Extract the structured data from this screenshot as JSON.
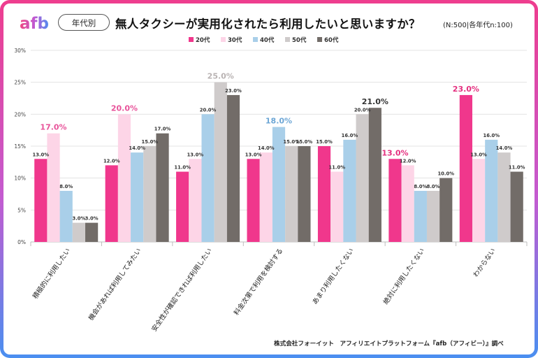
{
  "header": {
    "logo_text": "afb",
    "tag": "年代別",
    "title": "無人タクシーが実用化されたら利用したいと思いますか？",
    "sample_note": "(N:500|各年代n:100)"
  },
  "footer": {
    "source": "株式会社フォーイット　アフィリエイトプラットフォーム『afb（アフィビー）』調べ"
  },
  "colors": {
    "logo_gradient": [
      "#f0477f",
      "#c158d2",
      "#4c8df0"
    ],
    "highlight_labels": [
      "#e8539a",
      "#6ea7d6",
      "#333333"
    ]
  },
  "chart_data": {
    "type": "bar",
    "categories": [
      "積極的に利用したい",
      "機会があれば利用してみたい",
      "安全性が確認できれば利用したい",
      "料金次第で利用を検討する",
      "あまり利用したくない",
      "絶対に利用したくない",
      "わからない"
    ],
    "series": [
      {
        "name": "20代",
        "color": "#f0378c",
        "values": [
          13.0,
          12.0,
          11.0,
          13.0,
          15.0,
          13.0,
          23.0
        ]
      },
      {
        "name": "30代",
        "color": "#fdd5e7",
        "values": [
          17.0,
          20.0,
          13.0,
          14.0,
          11.0,
          12.0,
          13.0
        ]
      },
      {
        "name": "40代",
        "color": "#a9cfe9",
        "values": [
          8.0,
          14.0,
          20.0,
          18.0,
          16.0,
          8.0,
          16.0
        ]
      },
      {
        "name": "50代",
        "color": "#cfcbcb",
        "values": [
          3.0,
          15.0,
          25.0,
          15.0,
          20.0,
          8.0,
          14.0
        ]
      },
      {
        "name": "60代",
        "color": "#726c68",
        "values": [
          3.0,
          17.0,
          23.0,
          15.0,
          21.0,
          10.0,
          11.0
        ]
      }
    ],
    "value_labels": [
      [
        "13.0%",
        "17.0%",
        "8.0%",
        "3.0%",
        "3.0%"
      ],
      [
        "12.0%",
        "20.0%",
        "14.0%",
        "15.0%",
        "17.0%"
      ],
      [
        "11.0%",
        "13.0%",
        "20.0%",
        "25.0%",
        "23.0%"
      ],
      [
        "13.0%",
        "14.0%",
        "18.0%",
        "15.0%",
        "15.0%"
      ],
      [
        "15.0%",
        "11.0%",
        "16.0%",
        "20.0%",
        "21.0%"
      ],
      [
        "13.0%",
        "12.0%",
        "8.0%",
        "8.0%",
        "10.0%"
      ],
      [
        "23.0%",
        "13.0%",
        "16.0%",
        "14.0%",
        "11.0%"
      ]
    ],
    "highlighted": [
      [
        0,
        1
      ],
      [
        1,
        1
      ],
      [
        2,
        3
      ],
      [
        3,
        2
      ],
      [
        4,
        4
      ],
      [
        5,
        0
      ],
      [
        6,
        0
      ]
    ],
    "y_ticks": [
      "0%",
      "5%",
      "10%",
      "15%",
      "20%",
      "25%",
      "30%"
    ],
    "ylim": [
      0,
      30
    ],
    "legend_position": "top-center",
    "grid": true
  }
}
